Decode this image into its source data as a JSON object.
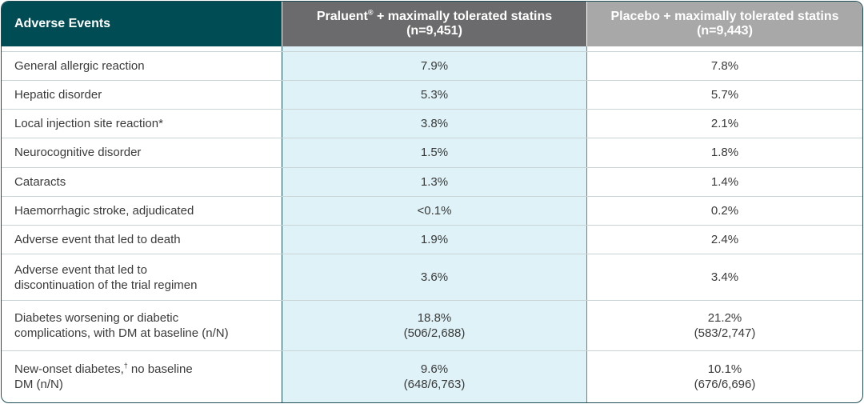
{
  "table": {
    "headers": {
      "col1": "Adverse Events",
      "col2_line1": "Praluent",
      "col2_reg": "®",
      "col2_rest": " + maximally tolerated statins",
      "col2_line2": "(n=9,451)",
      "col3_line1": "Placebo + maximally tolerated statins",
      "col3_line2": "(n=9,443)"
    },
    "rows": [
      {
        "event": "General allergic reaction",
        "praluent": "7.9%",
        "placebo": "7.8%"
      },
      {
        "event": "Hepatic disorder",
        "praluent": "5.3%",
        "placebo": "5.7%"
      },
      {
        "event": "Local injection site reaction*",
        "praluent": "3.8%",
        "placebo": "2.1%"
      },
      {
        "event": "Neurocognitive disorder",
        "praluent": "1.5%",
        "placebo": "1.8%"
      },
      {
        "event": "Cataracts",
        "praluent": "1.3%",
        "placebo": "1.4%"
      },
      {
        "event": "Haemorrhagic stroke, adjudicated",
        "praluent": "<0.1%",
        "placebo": "0.2%"
      },
      {
        "event": "Adverse event that led to death",
        "praluent": "1.9%",
        "placebo": "2.4%"
      },
      {
        "event_line1": "Adverse event that led to",
        "event_line2": "discontinuation of the trial regimen",
        "praluent": "3.6%",
        "placebo": "3.4%"
      },
      {
        "event_line1": "Diabetes worsening or diabetic",
        "event_line2": "complications, with DM at baseline (n/N)",
        "praluent": "18.8%",
        "praluent_sub": "(506/2,688)",
        "placebo": "21.2%",
        "placebo_sub": "(583/2,747)"
      },
      {
        "event_line1a": "New-onset diabetes,",
        "event_sup": "†",
        "event_line1b": " no baseline",
        "event_line2": "DM (n/N)",
        "praluent": "9.6%",
        "praluent_sub": "(648/6,763)",
        "placebo": "10.1%",
        "placebo_sub": "(676/6,696)"
      }
    ]
  }
}
